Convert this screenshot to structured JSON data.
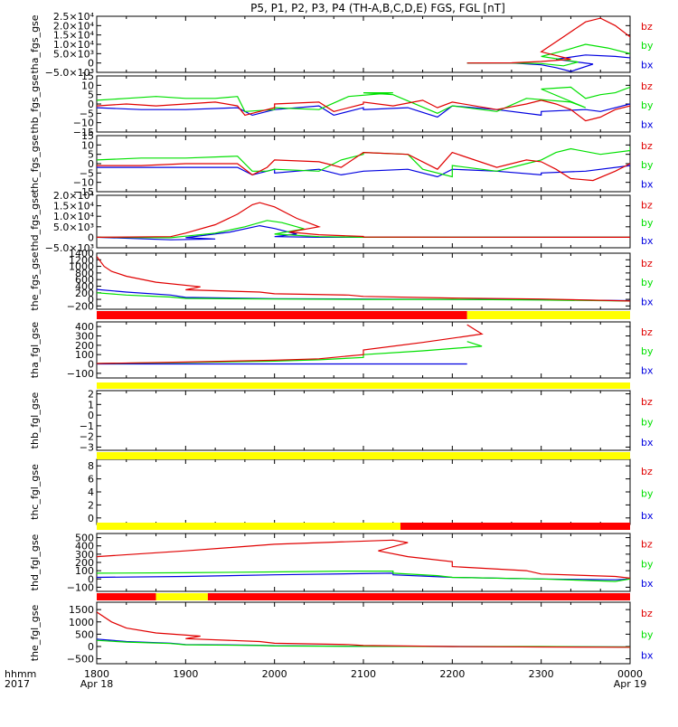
{
  "title": "P5, P1, P2, P3, P4 (TH-A,B,C,D,E) FGS, FGL [nT]",
  "time_axis": {
    "row_label": "hhmm",
    "year_label": "2017",
    "ticks": [
      "1800",
      "1900",
      "2000",
      "2100",
      "2200",
      "2300",
      "0000"
    ],
    "date_labels": [
      {
        "at": "1800",
        "text": "Apr 18"
      },
      {
        "at": "0000",
        "text": "Apr 19"
      }
    ]
  },
  "legend": {
    "bz": "bz",
    "by": "by",
    "bx": "bx"
  },
  "colors": {
    "bz": "#e00000",
    "by": "#00e000",
    "bx": "#0000e0",
    "flag_red": "#ff0000",
    "flag_yellow": "#ffff00",
    "axis": "#000000"
  },
  "chart_data": [
    {
      "type": "line",
      "ylabel": "tha_fgs_gse",
      "ylim": [
        -5000,
        25000
      ],
      "ytick_labels": [
        "−5.0×10³",
        "0",
        "5.0×10³",
        "1.0×10⁴",
        "1.5×10⁴",
        "2.0×10⁴",
        "2.5×10⁴"
      ],
      "series": [
        {
          "name": "bz",
          "x": [
            2210,
            2240,
            2260,
            2280,
            2300,
            2315,
            2330,
            2340,
            2350,
            2360,
            2370,
            2380,
            2390,
            2400
          ],
          "y": [
            0,
            100,
            800,
            2000,
            6000,
            14000,
            22000,
            24000,
            20000,
            14000,
            9000,
            6000,
            3500,
            2000
          ]
        },
        {
          "name": "by",
          "x": [
            2210,
            2240,
            2260,
            2275,
            2285,
            2300,
            2315,
            2330,
            2345,
            2360,
            2380,
            2400
          ],
          "y": [
            0,
            0,
            -300,
            -1500,
            500,
            3500,
            6500,
            10000,
            8000,
            5000,
            2500,
            1500
          ]
        },
        {
          "name": "bx",
          "x": [
            2210,
            2240,
            2260,
            2270,
            2280,
            2295,
            2310,
            2330,
            2350,
            2370,
            2400
          ],
          "y": [
            0,
            0,
            -1000,
            -2500,
            -4500,
            -600,
            2000,
            4300,
            3500,
            2000,
            800
          ]
        }
      ]
    },
    {
      "type": "line",
      "ylabel": "thb_fgs_gse",
      "ylim": [
        -15,
        15
      ],
      "ytick_labels": [
        "−15",
        "−10",
        "−5",
        "0",
        "5",
        "10",
        "15"
      ],
      "series": [
        {
          "name": "bz",
          "x": [
            1800,
            1820,
            1840,
            1900,
            1920,
            1935,
            1940,
            1960,
            2000,
            2030,
            2040,
            2060,
            2100,
            2120,
            2140,
            2150,
            2200,
            2230,
            2250,
            2300,
            2310,
            2320,
            2330,
            2340,
            2350,
            2400
          ],
          "y": [
            -1,
            0,
            -1,
            0,
            1,
            -1,
            -6,
            -2,
            0,
            1,
            -4,
            0,
            1,
            -1,
            2,
            -2,
            1,
            -3,
            0,
            2,
            0,
            -3,
            -9,
            -7,
            -3,
            -1
          ]
        },
        {
          "name": "by",
          "x": [
            1800,
            1820,
            1840,
            1900,
            1920,
            1935,
            1940,
            1960,
            2000,
            2030,
            2050,
            2080,
            2100,
            2120,
            2150,
            2200,
            2230,
            2250,
            2280,
            2290,
            2300,
            2320,
            2330,
            2340,
            2350,
            2400
          ],
          "y": [
            2,
            3,
            4,
            3,
            3,
            4,
            -4,
            -3,
            -2,
            -3,
            4,
            6,
            6,
            5,
            -5,
            -1,
            -4,
            3,
            1,
            -2,
            8,
            9,
            3,
            5,
            6,
            9
          ]
        },
        {
          "name": "bx",
          "x": [
            1800,
            1830,
            1900,
            1935,
            1945,
            1960,
            2000,
            2030,
            2040,
            2060,
            2100,
            2130,
            2150,
            2200,
            2230,
            2260,
            2300,
            2330,
            2340,
            2360,
            2400
          ],
          "y": [
            -2,
            -3,
            -3,
            -2,
            -6,
            -3,
            -3,
            -1,
            -6,
            -2,
            -3,
            -2,
            -7,
            -1,
            -3,
            -6,
            -4,
            -3,
            -4,
            0,
            0
          ]
        }
      ]
    },
    {
      "type": "line",
      "ylabel": "thc_fgs_gse",
      "ylim": [
        -15,
        15
      ],
      "ytick_labels": [
        "−15",
        "−10",
        "−5",
        "0",
        "5",
        "10",
        "15"
      ],
      "series": [
        {
          "name": "bz",
          "x": [
            1800,
            1830,
            1900,
            1935,
            1945,
            1955,
            2000,
            2030,
            2045,
            2100,
            2130,
            2150,
            2200,
            2230,
            2250,
            2300,
            2310,
            2320,
            2335,
            2350,
            2400
          ],
          "y": [
            -1,
            -1,
            0,
            0,
            -6,
            -2,
            2,
            1,
            -2,
            6,
            5,
            -3,
            6,
            -2,
            2,
            1,
            -3,
            -8,
            -9,
            -4,
            0
          ]
        },
        {
          "name": "by",
          "x": [
            1800,
            1830,
            1900,
            1935,
            1945,
            1955,
            2000,
            2030,
            2045,
            2060,
            2100,
            2130,
            2140,
            2160,
            2200,
            2230,
            2250,
            2300,
            2310,
            2320,
            2340,
            2360,
            2400
          ],
          "y": [
            2,
            3,
            3,
            4,
            -4,
            -4,
            -3,
            -4,
            2,
            5,
            6,
            5,
            -3,
            -7,
            -1,
            -4,
            0,
            2,
            6,
            8,
            5,
            7,
            9
          ]
        },
        {
          "name": "bx",
          "x": [
            1800,
            1830,
            1900,
            1935,
            1945,
            1960,
            2000,
            2030,
            2045,
            2100,
            2130,
            2150,
            2200,
            2230,
            2260,
            2300,
            2330,
            2360,
            2400
          ],
          "y": [
            -2,
            -2,
            -2,
            -2,
            -6,
            -3,
            -5,
            -3,
            -6,
            -4,
            -3,
            -7,
            -3,
            -4,
            -6,
            -5,
            -4,
            -1,
            0
          ]
        }
      ]
    },
    {
      "type": "line",
      "ylabel": "thd_fgs_gse",
      "ylim": [
        -5000,
        20000
      ],
      "ytick_labels": [
        "−5.0×10³",
        "0",
        "5.0×10³",
        "1.0×10⁴",
        "1.5×10⁴",
        "2.0×10⁴"
      ],
      "series": [
        {
          "name": "bz",
          "x": [
            1800,
            1850,
            1900,
            1920,
            1935,
            1945,
            1950,
            1960,
            1975,
            1990,
            2010,
            2030,
            2060,
            2100,
            2200,
            2400
          ],
          "y": [
            0,
            300,
            2000,
            6000,
            11000,
            15500,
            16500,
            14500,
            9000,
            5000,
            2500,
            1200,
            400,
            150,
            50,
            0
          ]
        },
        {
          "name": "by",
          "x": [
            1800,
            1850,
            1900,
            1920,
            1940,
            1955,
            1965,
            1980,
            2000,
            2030,
            2100,
            2400
          ],
          "y": [
            0,
            -200,
            500,
            2000,
            5000,
            8000,
            7000,
            4000,
            1500,
            300,
            0,
            0
          ]
        },
        {
          "name": "bx",
          "x": [
            1800,
            1850,
            1880,
            1900,
            1930,
            1950,
            1960,
            1975,
            2000,
            2030,
            2100,
            2400
          ],
          "y": [
            0,
            -1200,
            -800,
            -200,
            2500,
            5500,
            4200,
            1500,
            300,
            0,
            0,
            0
          ]
        }
      ]
    },
    {
      "type": "line",
      "ylabel": "the_fgs_gse",
      "ylim": [
        -300,
        1400
      ],
      "ytick_labels": [
        "−200",
        "0",
        "200",
        "400",
        "600",
        "800",
        "1000",
        "1200",
        "1400"
      ],
      "series": [
        {
          "name": "bz",
          "x": [
            1800,
            1805,
            1810,
            1820,
            1840,
            1870,
            1900,
            1950,
            2000,
            2050,
            2100,
            2200,
            2300,
            2400
          ],
          "y": [
            1300,
            1000,
            850,
            700,
            520,
            380,
            290,
            220,
            170,
            130,
            90,
            40,
            10,
            -50
          ]
        },
        {
          "name": "by",
          "x": [
            1800,
            1820,
            1850,
            1900,
            2000,
            2100,
            2200,
            2300,
            2400
          ],
          "y": [
            200,
            130,
            70,
            30,
            10,
            0,
            0,
            -20,
            -50
          ]
        },
        {
          "name": "bx",
          "x": [
            1800,
            1820,
            1850,
            1900,
            2000,
            2100,
            2200,
            2300,
            2400
          ],
          "y": [
            300,
            220,
            130,
            60,
            20,
            10,
            0,
            -10,
            -40
          ]
        }
      ]
    },
    {
      "type": "line",
      "ylabel": "tha_fgl_gse",
      "ylim": [
        -150,
        450
      ],
      "ytick_labels": [
        "−100",
        "0",
        "100",
        "200",
        "300",
        "400"
      ],
      "series": [
        {
          "name": "bz",
          "x": [
            1800,
            1900,
            2000,
            2030,
            2060,
            2100,
            2140,
            2180,
            2210
          ],
          "y": [
            5,
            20,
            40,
            55,
            100,
            150,
            230,
            320,
            420
          ]
        },
        {
          "name": "by",
          "x": [
            1800,
            1900,
            2000,
            2030,
            2060,
            2100,
            2140,
            2180,
            2210
          ],
          "y": [
            5,
            15,
            30,
            45,
            70,
            100,
            140,
            190,
            240
          ]
        },
        {
          "name": "bx",
          "x": [
            1800,
            2000,
            2210
          ],
          "y": [
            0,
            0,
            0
          ]
        }
      ],
      "flags": [
        {
          "color": "red",
          "from": 1800,
          "to": 2210
        },
        {
          "color": "yellow",
          "from": 2210,
          "to": 2400
        }
      ]
    },
    {
      "type": "line",
      "ylabel": "thb_fgl_gse",
      "ylim": [
        -3.3,
        2.3
      ],
      "ytick_labels": [
        "−3",
        "−2",
        "−1",
        "0",
        "1",
        "2"
      ],
      "series": [],
      "flags": [
        {
          "color": "yellow",
          "from": 1800,
          "to": 2400
        }
      ]
    },
    {
      "type": "line",
      "ylabel": "thc_fgl_gse",
      "ylim": [
        -1,
        9
      ],
      "ytick_labels": [
        "0",
        "2",
        "4",
        "6",
        "8"
      ],
      "series": [],
      "flags": [
        {
          "color": "yellow",
          "from": 1800,
          "to": 2400
        }
      ]
    },
    {
      "type": "line",
      "ylabel": "thd_fgl_gse",
      "ylim": [
        -150,
        550
      ],
      "ytick_labels": [
        "−100",
        "0",
        "100",
        "200",
        "300",
        "400",
        "500"
      ],
      "series": [
        {
          "name": "bz",
          "x": [
            1800,
            1900,
            2000,
            2080,
            2090,
            2110,
            2130,
            2160,
            2200,
            2250,
            2300,
            2350,
            2400
          ],
          "y": [
            270,
            340,
            420,
            470,
            440,
            340,
            270,
            210,
            150,
            100,
            60,
            30,
            10
          ]
        },
        {
          "name": "by",
          "x": [
            1800,
            1900,
            2000,
            2050,
            2080,
            2120,
            2150,
            2200,
            2300,
            2350,
            2400
          ],
          "y": [
            70,
            75,
            85,
            95,
            95,
            70,
            40,
            20,
            0,
            -30,
            0
          ]
        },
        {
          "name": "bx",
          "x": [
            1800,
            1900,
            2000,
            2080,
            2120,
            2200,
            2300,
            2350,
            2400
          ],
          "y": [
            20,
            30,
            50,
            70,
            50,
            20,
            0,
            -10,
            0
          ]
        }
      ],
      "flags": [
        {
          "color": "yellow",
          "from": 1800,
          "to": 2085
        },
        {
          "color": "red",
          "from": 2085,
          "to": 2400
        }
      ]
    },
    {
      "type": "line",
      "ylabel": "the_fgl_gse",
      "ylim": [
        -700,
        1800
      ],
      "ytick_labels": [
        "−500",
        "0",
        "500",
        "1000",
        "1500"
      ],
      "series": [
        {
          "name": "bz",
          "x": [
            1800,
            1810,
            1820,
            1840,
            1870,
            1900,
            1950,
            2000,
            2050,
            2100,
            2200,
            2300,
            2400
          ],
          "y": [
            1400,
            1000,
            750,
            550,
            420,
            320,
            200,
            130,
            80,
            40,
            0,
            -20,
            -30
          ]
        },
        {
          "name": "by",
          "x": [
            1800,
            1820,
            1850,
            1900,
            1950,
            2000,
            2100,
            2200,
            2300,
            2400
          ],
          "y": [
            250,
            180,
            120,
            70,
            40,
            20,
            5,
            0,
            0,
            -20
          ]
        },
        {
          "name": "bx",
          "x": [
            1800,
            1820,
            1850,
            1900,
            1950,
            2000,
            2100,
            2200,
            2300,
            2400
          ],
          "y": [
            300,
            200,
            130,
            80,
            50,
            30,
            10,
            0,
            -10,
            -20
          ]
        }
      ],
      "flags": [
        {
          "color": "red",
          "from": 1800,
          "to": 1840
        },
        {
          "color": "yellow",
          "from": 1840,
          "to": 1915
        },
        {
          "color": "red",
          "from": 1915,
          "to": 2400
        }
      ]
    }
  ]
}
